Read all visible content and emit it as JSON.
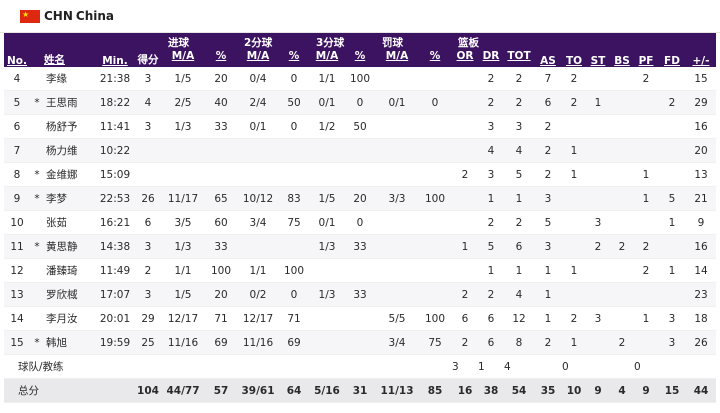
{
  "team": {
    "code": "CHN",
    "name": "China",
    "flag": "china-flag-icon"
  },
  "columns": {
    "no": "No.",
    "name": "姓名",
    "min": "Min.",
    "pts": "得分",
    "fg_group": "进球",
    "fg_ma": "M/A",
    "fg_pct": "%",
    "two_group": "2分球",
    "two_ma": "M/A",
    "two_pct": "%",
    "three_group": "3分球",
    "three_ma": "M/A",
    "three_pct": "%",
    "ft_group": "罚球",
    "ft_ma": "M/A",
    "ft_pct": "%",
    "reb_group": "篮板",
    "or": "OR",
    "dr": "DR",
    "tot": "TOT",
    "as": "AS",
    "to": "TO",
    "st": "ST",
    "bs": "BS",
    "pf": "PF",
    "fd": "FD",
    "pm": "+/-"
  },
  "players": [
    {
      "no": "4",
      "star": "",
      "name": "李缘",
      "min": "21:38",
      "pts": "3",
      "fg_ma": "1/5",
      "fg_pct": "20",
      "two_ma": "0/4",
      "two_pct": "0",
      "three_ma": "1/1",
      "three_pct": "100",
      "ft_ma": "",
      "ft_pct": "",
      "or": "",
      "dr": "2",
      "tot": "2",
      "as": "7",
      "to": "2",
      "st": "",
      "bs": "",
      "pf": "2",
      "fd": "",
      "pm": "15"
    },
    {
      "no": "5",
      "star": "*",
      "name": "王思雨",
      "min": "18:22",
      "pts": "4",
      "fg_ma": "2/5",
      "fg_pct": "40",
      "two_ma": "2/4",
      "two_pct": "50",
      "three_ma": "0/1",
      "three_pct": "0",
      "ft_ma": "0/1",
      "ft_pct": "0",
      "or": "",
      "dr": "2",
      "tot": "2",
      "as": "6",
      "to": "2",
      "st": "1",
      "bs": "",
      "pf": "",
      "fd": "2",
      "pm": "29"
    },
    {
      "no": "6",
      "star": "",
      "name": "杨舒予",
      "min": "11:41",
      "pts": "3",
      "fg_ma": "1/3",
      "fg_pct": "33",
      "two_ma": "0/1",
      "two_pct": "0",
      "three_ma": "1/2",
      "three_pct": "50",
      "ft_ma": "",
      "ft_pct": "",
      "or": "",
      "dr": "3",
      "tot": "3",
      "as": "2",
      "to": "",
      "st": "",
      "bs": "",
      "pf": "",
      "fd": "",
      "pm": "16"
    },
    {
      "no": "7",
      "star": "",
      "name": "杨力维",
      "min": "10:22",
      "pts": "",
      "fg_ma": "",
      "fg_pct": "",
      "two_ma": "",
      "two_pct": "",
      "three_ma": "",
      "three_pct": "",
      "ft_ma": "",
      "ft_pct": "",
      "or": "",
      "dr": "4",
      "tot": "4",
      "as": "2",
      "to": "1",
      "st": "",
      "bs": "",
      "pf": "",
      "fd": "",
      "pm": "20"
    },
    {
      "no": "8",
      "star": "*",
      "name": "金维娜",
      "min": "15:09",
      "pts": "",
      "fg_ma": "",
      "fg_pct": "",
      "two_ma": "",
      "two_pct": "",
      "three_ma": "",
      "three_pct": "",
      "ft_ma": "",
      "ft_pct": "",
      "or": "2",
      "dr": "3",
      "tot": "5",
      "as": "2",
      "to": "1",
      "st": "",
      "bs": "",
      "pf": "1",
      "fd": "",
      "pm": "13"
    },
    {
      "no": "9",
      "star": "*",
      "name": "李梦",
      "min": "22:53",
      "pts": "26",
      "fg_ma": "11/17",
      "fg_pct": "65",
      "two_ma": "10/12",
      "two_pct": "83",
      "three_ma": "1/5",
      "three_pct": "20",
      "ft_ma": "3/3",
      "ft_pct": "100",
      "or": "",
      "dr": "1",
      "tot": "1",
      "as": "3",
      "to": "",
      "st": "",
      "bs": "",
      "pf": "1",
      "fd": "5",
      "pm": "21"
    },
    {
      "no": "10",
      "star": "",
      "name": "张茹",
      "min": "16:21",
      "pts": "6",
      "fg_ma": "3/5",
      "fg_pct": "60",
      "two_ma": "3/4",
      "two_pct": "75",
      "three_ma": "0/1",
      "three_pct": "0",
      "ft_ma": "",
      "ft_pct": "",
      "or": "",
      "dr": "2",
      "tot": "2",
      "as": "5",
      "to": "",
      "st": "3",
      "bs": "",
      "pf": "",
      "fd": "1",
      "pm": "9"
    },
    {
      "no": "11",
      "star": "*",
      "name": "黄思静",
      "min": "14:38",
      "pts": "3",
      "fg_ma": "1/3",
      "fg_pct": "33",
      "two_ma": "",
      "two_pct": "",
      "three_ma": "1/3",
      "three_pct": "33",
      "ft_ma": "",
      "ft_pct": "",
      "or": "1",
      "dr": "5",
      "tot": "6",
      "as": "3",
      "to": "",
      "st": "2",
      "bs": "2",
      "pf": "2",
      "fd": "",
      "pm": "16"
    },
    {
      "no": "12",
      "star": "",
      "name": "潘臻琦",
      "min": "11:49",
      "pts": "2",
      "fg_ma": "1/1",
      "fg_pct": "100",
      "two_ma": "1/1",
      "two_pct": "100",
      "three_ma": "",
      "three_pct": "",
      "ft_ma": "",
      "ft_pct": "",
      "or": "",
      "dr": "1",
      "tot": "1",
      "as": "1",
      "to": "1",
      "st": "",
      "bs": "",
      "pf": "2",
      "fd": "1",
      "pm": "14"
    },
    {
      "no": "13",
      "star": "",
      "name": "罗欣棫",
      "min": "17:07",
      "pts": "3",
      "fg_ma": "1/5",
      "fg_pct": "20",
      "two_ma": "0/2",
      "two_pct": "0",
      "three_ma": "1/3",
      "three_pct": "33",
      "ft_ma": "",
      "ft_pct": "",
      "or": "2",
      "dr": "2",
      "tot": "4",
      "as": "1",
      "to": "",
      "st": "",
      "bs": "",
      "pf": "",
      "fd": "",
      "pm": "23"
    },
    {
      "no": "14",
      "star": "",
      "name": "李月汝",
      "min": "20:01",
      "pts": "29",
      "fg_ma": "12/17",
      "fg_pct": "71",
      "two_ma": "12/17",
      "two_pct": "71",
      "three_ma": "",
      "three_pct": "",
      "ft_ma": "5/5",
      "ft_pct": "100",
      "or": "6",
      "dr": "6",
      "tot": "12",
      "as": "1",
      "to": "2",
      "st": "3",
      "bs": "",
      "pf": "1",
      "fd": "3",
      "pm": "18"
    },
    {
      "no": "15",
      "star": "*",
      "name": "韩旭",
      "min": "19:59",
      "pts": "25",
      "fg_ma": "11/16",
      "fg_pct": "69",
      "two_ma": "11/16",
      "two_pct": "69",
      "three_ma": "",
      "three_pct": "",
      "ft_ma": "3/4",
      "ft_pct": "75",
      "or": "2",
      "dr": "6",
      "tot": "8",
      "as": "2",
      "to": "1",
      "st": "",
      "bs": "2",
      "pf": "",
      "fd": "3",
      "pm": "26"
    }
  ],
  "team_row": {
    "label": "球队/教练",
    "or": "3",
    "dr": "1",
    "tot": "4",
    "as": "",
    "to": "0",
    "pf": "0"
  },
  "totals": {
    "label": "总分",
    "pts": "104",
    "fg_ma": "44/77",
    "fg_pct": "57",
    "two_ma": "39/61",
    "two_pct": "64",
    "three_ma": "5/16",
    "three_pct": "31",
    "ft_ma": "11/13",
    "ft_pct": "85",
    "or": "16",
    "dr": "38",
    "tot": "54",
    "as": "35",
    "to": "10",
    "st": "9",
    "bs": "4",
    "pf": "9",
    "fd": "15",
    "pm": "44"
  }
}
